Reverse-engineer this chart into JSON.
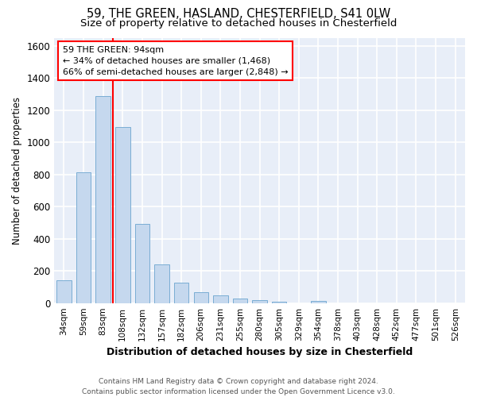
{
  "title_line1": "59, THE GREEN, HASLAND, CHESTERFIELD, S41 0LW",
  "title_line2": "Size of property relative to detached houses in Chesterfield",
  "xlabel": "Distribution of detached houses by size in Chesterfield",
  "ylabel": "Number of detached properties",
  "bar_color": "#c5d8ee",
  "bar_edge_color": "#7aadd4",
  "background_color": "#e8eef8",
  "grid_color": "#ffffff",
  "categories": [
    "34sqm",
    "59sqm",
    "83sqm",
    "108sqm",
    "132sqm",
    "157sqm",
    "182sqm",
    "206sqm",
    "231sqm",
    "255sqm",
    "280sqm",
    "305sqm",
    "329sqm",
    "354sqm",
    "378sqm",
    "403sqm",
    "428sqm",
    "452sqm",
    "477sqm",
    "501sqm",
    "526sqm"
  ],
  "values": [
    140,
    815,
    1285,
    1095,
    490,
    240,
    128,
    70,
    48,
    28,
    20,
    8,
    0,
    15,
    0,
    0,
    0,
    0,
    0,
    0,
    0
  ],
  "ylim": [
    0,
    1650
  ],
  "yticks": [
    0,
    200,
    400,
    600,
    800,
    1000,
    1200,
    1400,
    1600
  ],
  "property_line_x": 2.5,
  "annotation_text_line1": "59 THE GREEN: 94sqm",
  "annotation_text_line2": "← 34% of detached houses are smaller (1,468)",
  "annotation_text_line3": "66% of semi-detached houses are larger (2,848) →",
  "footer_line1": "Contains HM Land Registry data © Crown copyright and database right 2024.",
  "footer_line2": "Contains public sector information licensed under the Open Government Licence v3.0.",
  "title_fontsize": 10.5,
  "subtitle_fontsize": 9.5,
  "xlabel_fontsize": 9,
  "ylabel_fontsize": 8.5,
  "annotation_fontsize": 8,
  "footer_fontsize": 6.5,
  "bar_width": 0.75
}
